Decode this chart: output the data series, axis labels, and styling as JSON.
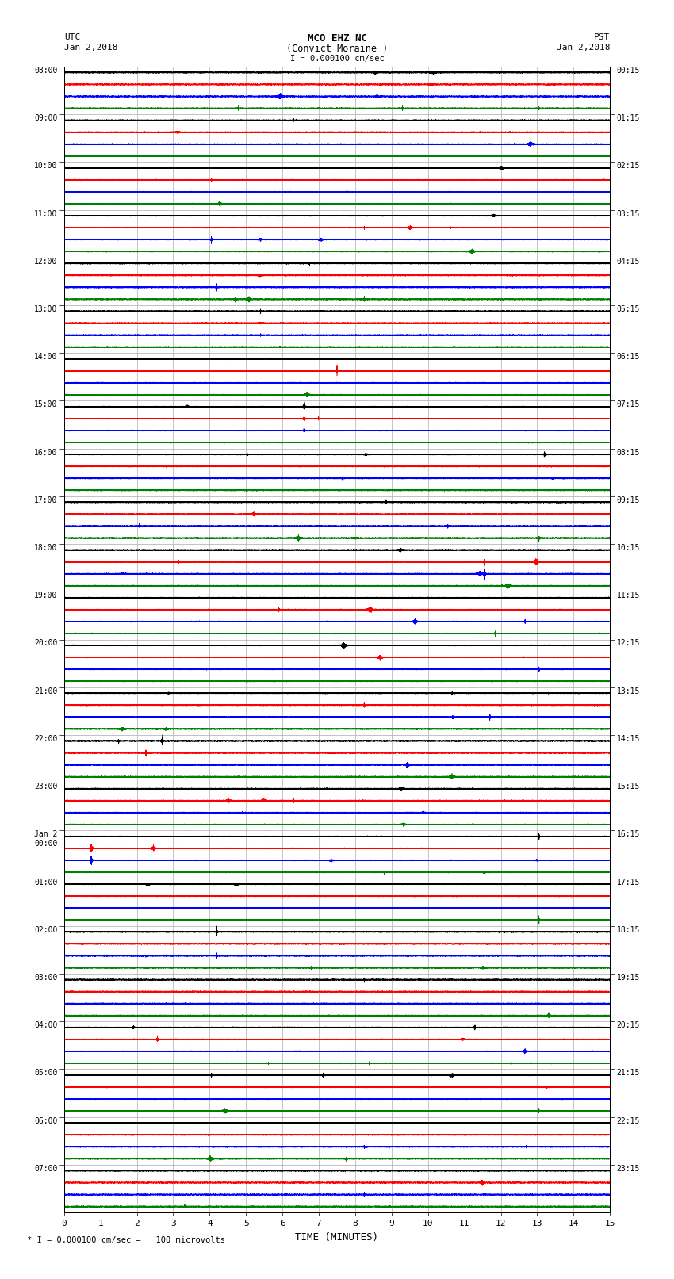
{
  "title_line1": "MCO EHZ NC",
  "title_line2": "(Convict Moraine )",
  "scale_label": "I = 0.000100 cm/sec",
  "footer_label": "* I = 0.000100 cm/sec =   100 microvolts",
  "xlabel": "TIME (MINUTES)",
  "left_times": [
    "08:00",
    "09:00",
    "10:00",
    "11:00",
    "12:00",
    "13:00",
    "14:00",
    "15:00",
    "16:00",
    "17:00",
    "18:00",
    "19:00",
    "20:00",
    "21:00",
    "22:00",
    "23:00",
    "Jan 2\n00:00",
    "01:00",
    "02:00",
    "03:00",
    "04:00",
    "05:00",
    "06:00",
    "07:00"
  ],
  "right_times": [
    "00:15",
    "01:15",
    "02:15",
    "03:15",
    "04:15",
    "05:15",
    "06:15",
    "07:15",
    "08:15",
    "09:15",
    "10:15",
    "11:15",
    "12:15",
    "13:15",
    "14:15",
    "15:15",
    "16:15",
    "17:15",
    "18:15",
    "19:15",
    "20:15",
    "21:15",
    "22:15",
    "23:15"
  ],
  "n_rows": 24,
  "traces_per_row": 4,
  "colors": [
    "black",
    "red",
    "blue",
    "green"
  ],
  "minutes_per_row": 15,
  "bg_color": "white",
  "trace_amplitude": 0.06,
  "noise_amplitude": 0.018,
  "sample_rate": 100
}
